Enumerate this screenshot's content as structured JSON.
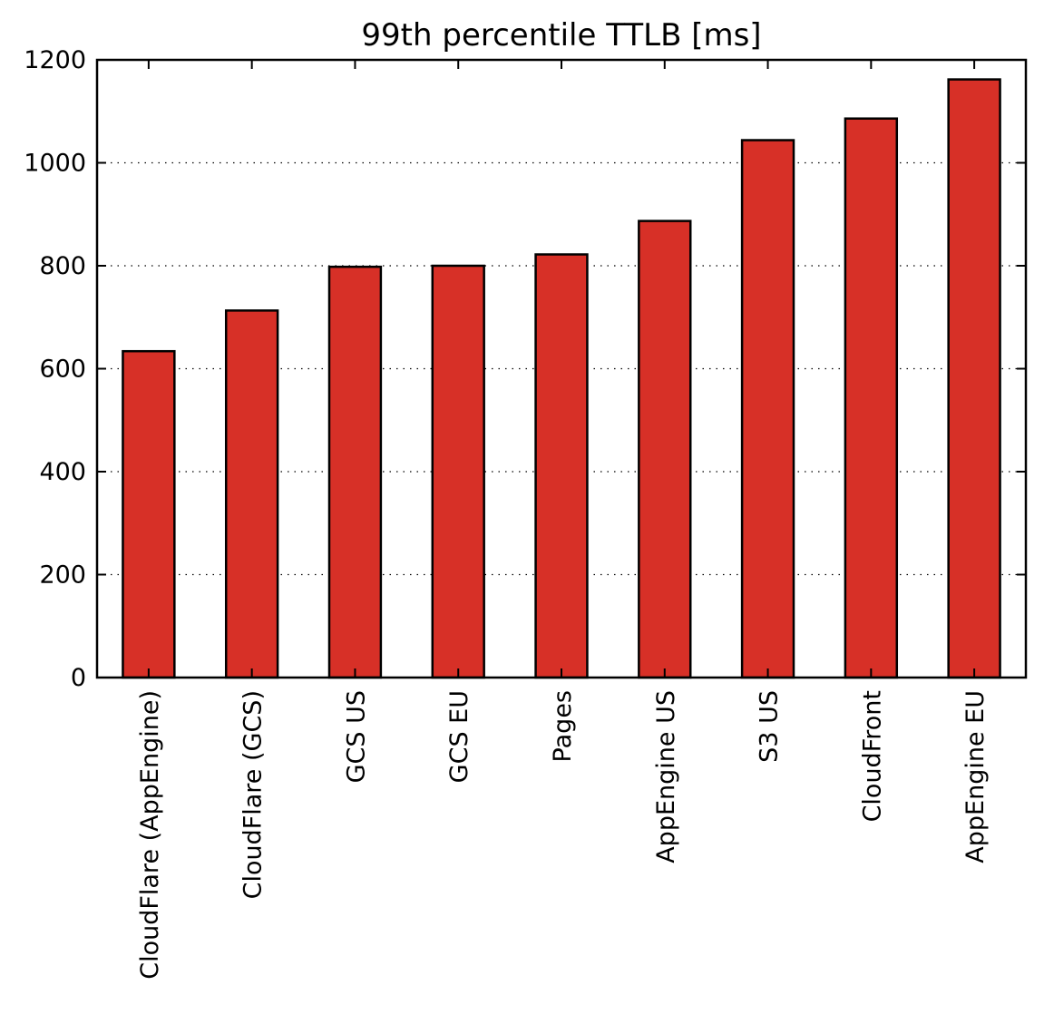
{
  "chart_data": {
    "type": "bar",
    "title": "99th percentile TTLB [ms]",
    "xlabel": "",
    "ylabel": "",
    "categories": [
      "CloudFlare (AppEngine)",
      "CloudFlare (GCS)",
      "GCS US",
      "GCS EU",
      "Pages",
      "AppEngine US",
      "S3 US",
      "CloudFront",
      "AppEngine EU"
    ],
    "values": [
      634,
      713,
      798,
      800,
      822,
      887,
      1044,
      1086,
      1162
    ],
    "ylim": [
      0,
      1200
    ],
    "yticks": [
      0,
      200,
      400,
      600,
      800,
      1000,
      1200
    ],
    "ytick_labels": [
      "0",
      "200",
      "400",
      "600",
      "800",
      "1000",
      "1200"
    ],
    "grid": "horizontal dotted",
    "legend": "none",
    "bar_color": "#d73027",
    "edge_color": "#000000"
  }
}
